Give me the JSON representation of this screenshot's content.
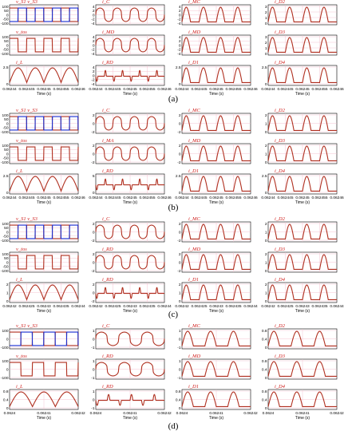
{
  "chart_data": [
    {
      "type": "line",
      "caption": "(a)",
      "x_title": "Time (s)",
      "ticks": [
        "0.06244",
        "0.062445",
        "0.06245",
        "0.062455",
        "0.06246"
      ],
      "panels": [
        {
          "label": "v_S1   v_S3",
          "yticks": [
            "100",
            "50",
            "0",
            "-50",
            "-100"
          ],
          "shape": "square_pair"
        },
        {
          "label": "i_C",
          "yticks": [
            "4",
            "2",
            "0",
            "-2",
            "-4"
          ],
          "shape": "cap_current"
        },
        {
          "label": "i_MC",
          "yticks": [
            "4",
            "2",
            "0",
            "-2",
            "-4"
          ],
          "shape": "arch"
        },
        {
          "label": "i_D2",
          "yticks": [
            "3",
            "2",
            "1",
            "0"
          ],
          "shape": "arch"
        },
        {
          "label": "v_tos",
          "yticks": [
            "100",
            "50",
            "0",
            "-50",
            "-100"
          ],
          "shape": "square"
        },
        {
          "label": "i_MD",
          "yticks": [
            "4",
            "2",
            "0",
            "-2",
            "-4"
          ],
          "shape": "cap_current"
        },
        {
          "label": "i_MD",
          "yticks": [
            "4",
            "2",
            "0",
            "-2",
            "-4"
          ],
          "shape": "arch"
        },
        {
          "label": "i_D3",
          "yticks": [
            "3",
            "2",
            "1",
            "0"
          ],
          "shape": "arch"
        },
        {
          "label": "i_L",
          "yticks": [
            "2.5",
            "0"
          ],
          "shape": "rect_sine"
        },
        {
          "label": "i_RD",
          "yticks": [
            "4",
            "2",
            "0",
            "-2",
            "-4"
          ],
          "shape": "pulse"
        },
        {
          "label": "i_D1",
          "yticks": [
            "2.5",
            "0"
          ],
          "shape": "arch"
        },
        {
          "label": "i_D4",
          "yticks": [
            "2.5",
            "0"
          ],
          "shape": "arch"
        }
      ]
    },
    {
      "type": "line",
      "caption": "(b)",
      "x_title": "Time (s)",
      "ticks": [
        "0.06244",
        "0.062445",
        "0.06245",
        "0.062455",
        "0.06246"
      ],
      "panels": [
        {
          "label": "v_S1   v_S3",
          "yticks": [
            "100",
            "50",
            "0",
            "-50",
            "-100"
          ],
          "shape": "square_pair"
        },
        {
          "label": "i_C",
          "yticks": [
            "2",
            "0",
            "-2"
          ],
          "shape": "cap_current"
        },
        {
          "label": "i_MC",
          "yticks": [
            "2",
            "0",
            "-2"
          ],
          "shape": "arch"
        },
        {
          "label": "i_D2",
          "yticks": [
            "2",
            "1",
            "0"
          ],
          "shape": "arch"
        },
        {
          "label": "v_tos",
          "yticks": [
            "100",
            "50",
            "0",
            "-50",
            "-100"
          ],
          "shape": "square"
        },
        {
          "label": "i_MA",
          "yticks": [
            "2",
            "0",
            "-2"
          ],
          "shape": "cap_current"
        },
        {
          "label": "i_MD",
          "yticks": [
            "2",
            "0",
            "-2"
          ],
          "shape": "arch"
        },
        {
          "label": "i_D3",
          "yticks": [
            "2",
            "1",
            "0"
          ],
          "shape": "arch"
        },
        {
          "label": "i_L",
          "yticks": [
            "2.5",
            "0"
          ],
          "shape": "rect_sine"
        },
        {
          "label": "i_RD",
          "yticks": [
            "5",
            "0"
          ],
          "shape": "pulse"
        },
        {
          "label": "i_D1",
          "yticks": [
            "2.5",
            "0"
          ],
          "shape": "arch"
        },
        {
          "label": "i_D4",
          "yticks": [
            "2.5",
            "0"
          ],
          "shape": "arch"
        }
      ]
    },
    {
      "type": "line",
      "caption": "(c)",
      "x_title": "Time (s)",
      "ticks": [
        "0.06242",
        "0.062425",
        "0.06243",
        "0.062435",
        "0.06244"
      ],
      "panels": [
        {
          "label": "v_S1   v_S3",
          "yticks": [
            "100",
            "50",
            "0",
            "-50",
            "-100"
          ],
          "shape": "square_pair"
        },
        {
          "label": "i_C",
          "yticks": [
            "2",
            "0",
            "-2"
          ],
          "shape": "cap_current"
        },
        {
          "label": "i_MC",
          "yticks": [
            "2",
            "0",
            "-2"
          ],
          "shape": "arch"
        },
        {
          "label": "i_D2",
          "yticks": [
            "2",
            "1",
            "0"
          ],
          "shape": "arch"
        },
        {
          "label": "v_tos",
          "yticks": [
            "100",
            "50",
            "0",
            "-50",
            "-100"
          ],
          "shape": "square"
        },
        {
          "label": "i_RD",
          "yticks": [
            "2",
            "0",
            "-2"
          ],
          "shape": "cap_current"
        },
        {
          "label": "i_MD",
          "yticks": [
            "2",
            "0",
            "-2"
          ],
          "shape": "arch"
        },
        {
          "label": "i_D3",
          "yticks": [
            "2",
            "1",
            "0"
          ],
          "shape": "arch"
        },
        {
          "label": "i_L",
          "yticks": [
            "2",
            "1",
            "0"
          ],
          "shape": "rect_sine"
        },
        {
          "label": "i_RD",
          "yticks": [
            "2",
            "0",
            "-2"
          ],
          "shape": "pulse"
        },
        {
          "label": "i_D1",
          "yticks": [
            "2",
            "1",
            "0"
          ],
          "shape": "arch"
        },
        {
          "label": "i_D4",
          "yticks": [
            "2",
            "1",
            "0"
          ],
          "shape": "arch"
        }
      ]
    },
    {
      "type": "line",
      "caption": "(d)",
      "x_title": "Time (s)",
      "ticks": [
        "0.0624",
        "0.06241",
        "0.06242"
      ],
      "panels": [
        {
          "label": "v_S1   v_S3",
          "yticks": [
            "100",
            "0",
            "-100"
          ],
          "shape": "square_pair"
        },
        {
          "label": "i_C",
          "yticks": [
            "1",
            "0",
            "-1"
          ],
          "shape": "cap_current"
        },
        {
          "label": "i_MC",
          "yticks": [
            "1",
            "0",
            "-1"
          ],
          "shape": "arch"
        },
        {
          "label": "i_D2",
          "yticks": [
            "0.8",
            "0.4",
            "0"
          ],
          "shape": "arch"
        },
        {
          "label": "v_tos",
          "yticks": [
            "100",
            "0",
            "-100"
          ],
          "shape": "square"
        },
        {
          "label": "i_RD",
          "yticks": [
            "1",
            "0",
            "-1"
          ],
          "shape": "cap_current"
        },
        {
          "label": "i_MD",
          "yticks": [
            "1",
            "0",
            "-1"
          ],
          "shape": "arch"
        },
        {
          "label": "i_D3",
          "yticks": [
            "0.8",
            "0.4",
            "0"
          ],
          "shape": "arch"
        },
        {
          "label": "i_L",
          "yticks": [
            "0.8",
            "0.4",
            "0"
          ],
          "shape": "rect_sine"
        },
        {
          "label": "i_RD",
          "yticks": [
            "1",
            "0",
            "-1"
          ],
          "shape": "pulse"
        },
        {
          "label": "i_D1",
          "yticks": [
            "0.8",
            "0.4",
            "0"
          ],
          "shape": "arch"
        },
        {
          "label": "i_D4",
          "yticks": [
            "0.8",
            "0.4",
            "0"
          ],
          "shape": "arch"
        }
      ]
    }
  ],
  "colors": {
    "trace": "#b03020",
    "trace2": "#1a2fd0",
    "label": "#d0201e",
    "grid": "#f2b8c8",
    "axis": "#000000"
  }
}
